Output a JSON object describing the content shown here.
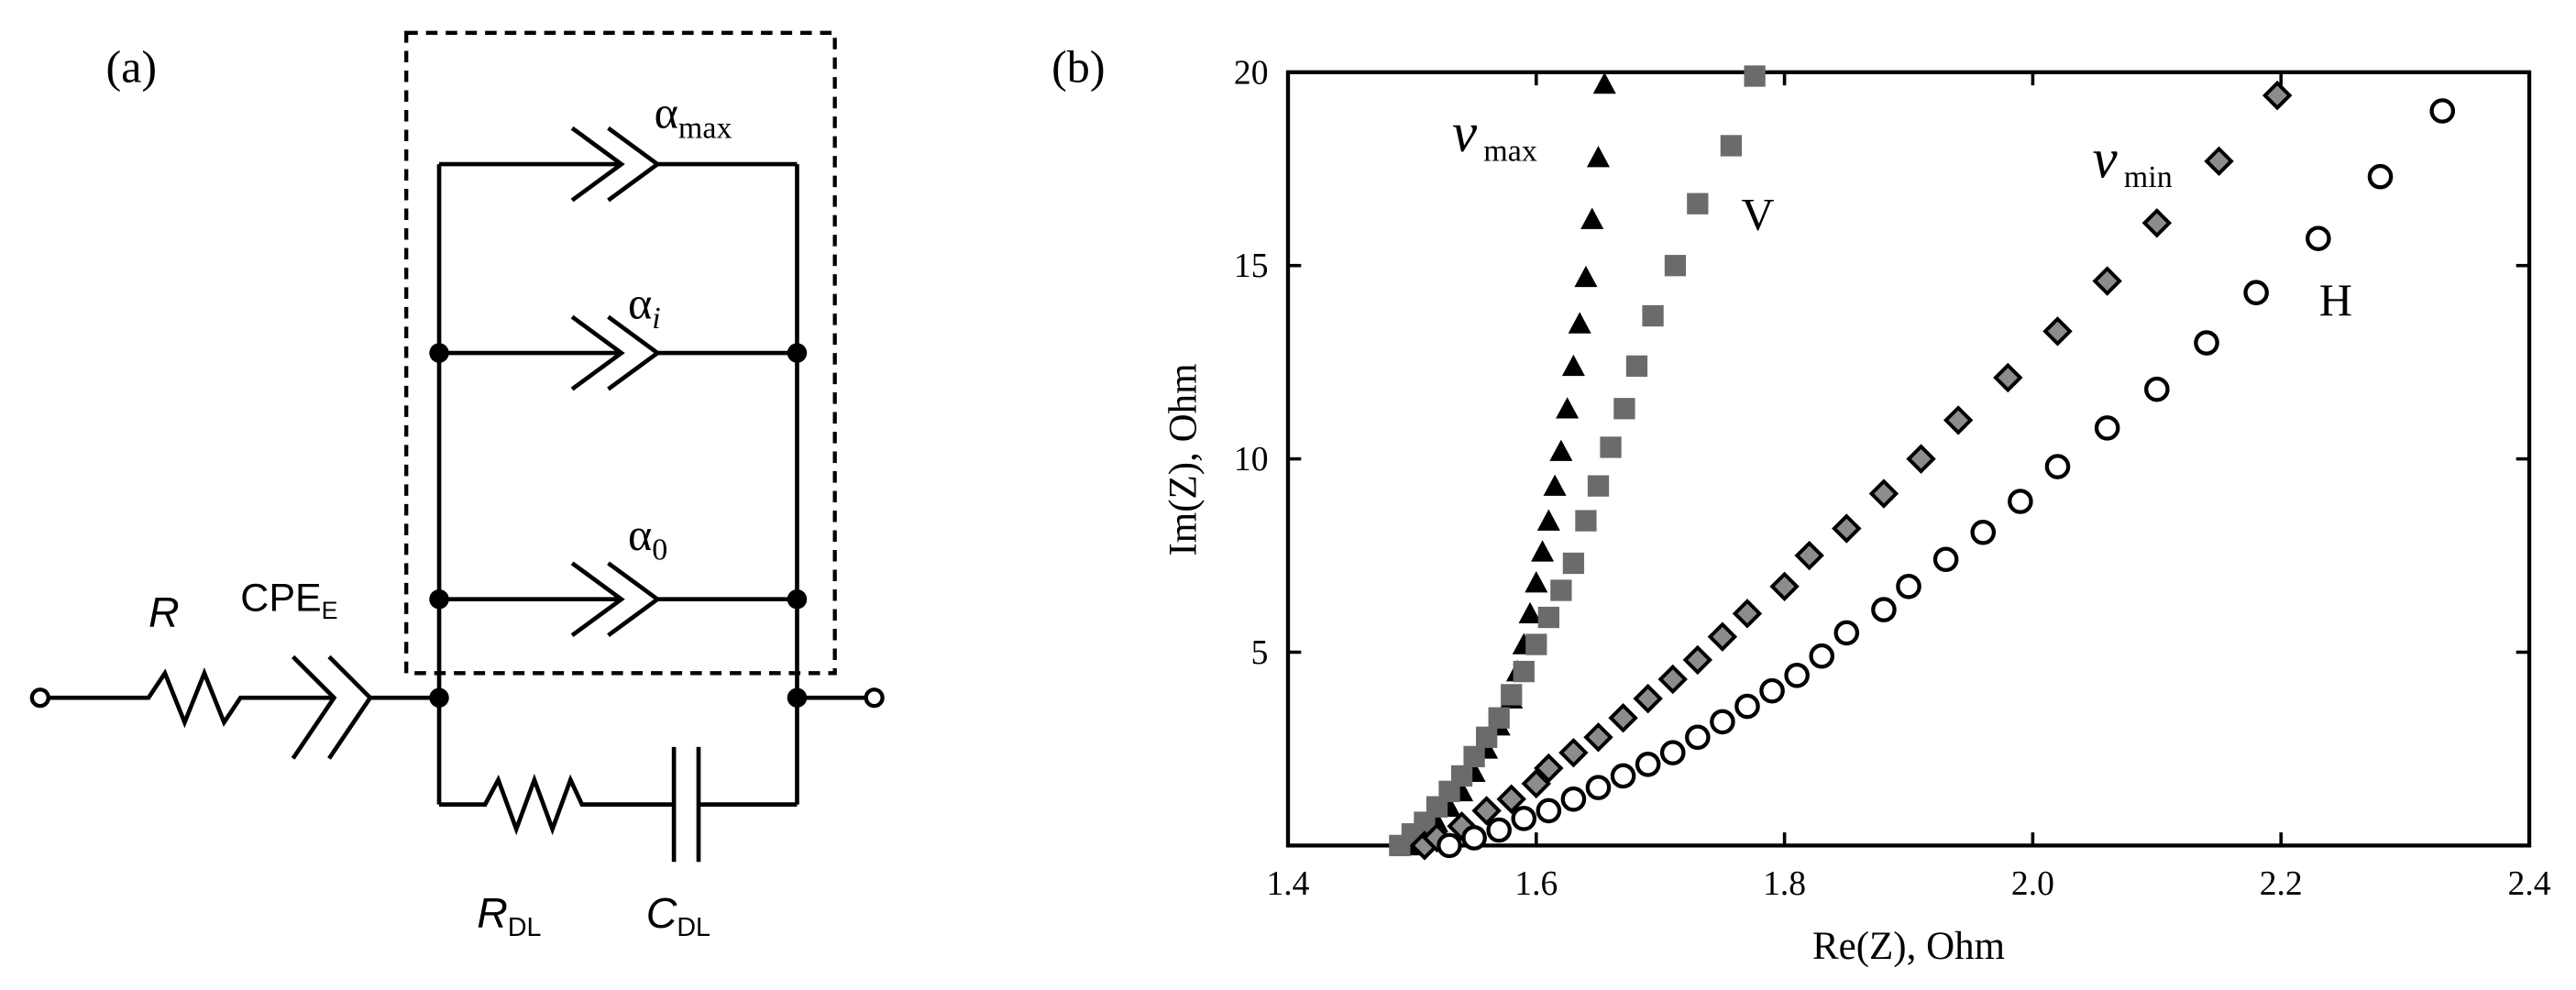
{
  "diagram": {
    "panel_label": "(a)",
    "labels": [
      {
        "text": "α",
        "sub": "max"
      },
      {
        "text": "α",
        "sub": "i"
      },
      {
        "text": "α",
        "sub": "0"
      },
      {
        "text": "R"
      },
      {
        "text": "CPE",
        "sub": "E"
      },
      {
        "text": "R",
        "sub": "DL"
      },
      {
        "text": "C",
        "sub": "DL"
      }
    ]
  },
  "chart_data": {
    "type": "scatter",
    "panel_label": "(b)",
    "x_label": "Re(Z), Ohm",
    "y_label": "Im(Z), Ohm",
    "xlim": [
      1.4,
      2.4
    ],
    "ylim": [
      0,
      20
    ],
    "xticks": [
      1.4,
      1.6,
      1.8,
      {
        "value": 2,
        "label": "2.0"
      },
      2.2,
      2.4
    ],
    "yticks": [
      5,
      10,
      15,
      20
    ],
    "annotations": [
      {
        "text": "ν",
        "sub": "max"
      },
      {
        "text": "V"
      },
      {
        "text": "ν",
        "sub": "min"
      },
      {
        "text": "H"
      }
    ],
    "series": [
      {
        "marker": "triangle",
        "color": "#000000",
        "x": [
          1.5,
          1.51,
          1.52,
          1.53,
          1.54,
          1.55,
          1.56,
          1.57,
          1.58,
          1.585,
          1.59,
          1.595,
          1.6,
          1.605,
          1.61,
          1.615,
          1.62,
          1.625,
          1.63,
          1.635,
          1.64,
          1.645,
          1.65,
          1.655
        ],
        "values": [
          0,
          0.3,
          0.6,
          1.0,
          1.4,
          1.9,
          2.5,
          3.1,
          3.8,
          4.5,
          5.2,
          6.0,
          6.8,
          7.6,
          8.4,
          9.3,
          10.2,
          11.3,
          12.4,
          13.5,
          14.7,
          16.2,
          17.8,
          19.7
        ]
      },
      {
        "marker": "square",
        "color": "#6b6b6b",
        "x": [
          1.49,
          1.5,
          1.51,
          1.52,
          1.53,
          1.54,
          1.55,
          1.56,
          1.57,
          1.58,
          1.59,
          1.6,
          1.61,
          1.62,
          1.63,
          1.64,
          1.65,
          1.66,
          1.671,
          1.681,
          1.694,
          1.712,
          1.73,
          1.757,
          1.776
        ],
        "values": [
          0,
          0.3,
          0.6,
          1.0,
          1.4,
          1.8,
          2.3,
          2.8,
          3.3,
          3.9,
          4.5,
          5.2,
          5.9,
          6.6,
          7.3,
          8.4,
          9.3,
          10.3,
          11.3,
          12.4,
          13.7,
          15.0,
          16.6,
          18.1,
          19.9
        ]
      },
      {
        "marker": "diamond",
        "color": "#8c8c8c",
        "x": [
          1.51,
          1.52,
          1.54,
          1.56,
          1.58,
          1.6,
          1.61,
          1.63,
          1.65,
          1.67,
          1.69,
          1.71,
          1.73,
          1.75,
          1.77,
          1.8,
          1.82,
          1.85,
          1.88,
          1.91,
          1.94,
          1.98,
          2.02,
          2.06,
          2.1,
          2.15,
          2.197
        ],
        "values": [
          0,
          0.2,
          0.5,
          0.9,
          1.2,
          1.6,
          2.0,
          2.4,
          2.8,
          3.3,
          3.8,
          4.3,
          4.8,
          5.4,
          6.0,
          6.7,
          7.5,
          8.2,
          9.1,
          10.0,
          11.0,
          12.1,
          13.3,
          14.6,
          16.1,
          17.7,
          19.4
        ]
      },
      {
        "marker": "circle",
        "color": "#ffffff",
        "x": [
          1.53,
          1.55,
          1.57,
          1.59,
          1.61,
          1.63,
          1.65,
          1.67,
          1.69,
          1.71,
          1.73,
          1.75,
          1.77,
          1.79,
          1.81,
          1.83,
          1.85,
          1.88,
          1.9,
          1.93,
          1.96,
          1.99,
          2.02,
          2.06,
          2.1,
          2.14,
          2.18,
          2.23,
          2.28,
          2.33
        ],
        "values": [
          0,
          0.2,
          0.4,
          0.7,
          0.9,
          1.2,
          1.5,
          1.8,
          2.1,
          2.4,
          2.8,
          3.2,
          3.6,
          4.0,
          4.4,
          4.9,
          5.5,
          6.1,
          6.7,
          7.4,
          8.1,
          8.9,
          9.8,
          10.8,
          11.8,
          13.0,
          14.3,
          15.7,
          17.3,
          19.0
        ]
      }
    ]
  }
}
